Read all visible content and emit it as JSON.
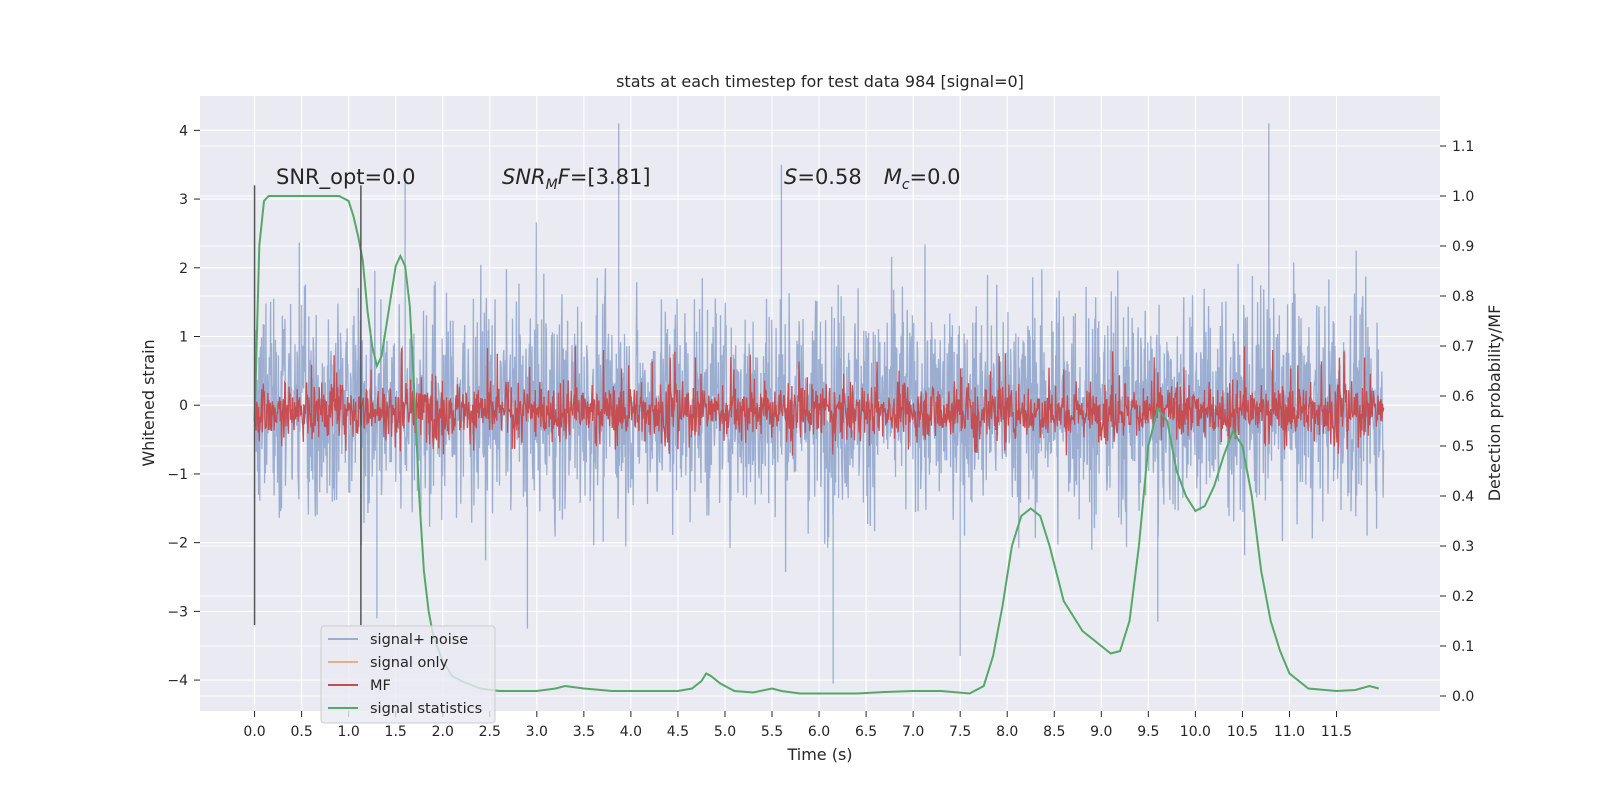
{
  "chart_data": {
    "type": "line",
    "title": "stats at each timestep for test data 984 [signal=0]",
    "xlabel": "Time (s)",
    "ylabel": "Whitened strain",
    "y2label": "Detection probability/MF",
    "xlim": [
      -0.58,
      12.6
    ],
    "ylim": [
      -4.45,
      4.5
    ],
    "y2lim": [
      -0.03,
      1.2
    ],
    "grid": true,
    "x_ticks": [
      0.0,
      0.5,
      1.0,
      1.5,
      2.0,
      2.5,
      3.0,
      3.5,
      4.0,
      4.5,
      5.0,
      5.5,
      6.0,
      6.5,
      7.0,
      7.5,
      8.0,
      8.5,
      9.0,
      9.5,
      10.0,
      10.5,
      11.0,
      11.5
    ],
    "x_tick_labels": [
      "0.0",
      "0.5",
      "1.0",
      "1.5",
      "2.0",
      "2.5",
      "3.0",
      "3.5",
      "4.0",
      "4.5",
      "5.0",
      "5.5",
      "6.0",
      "6.5",
      "7.0",
      "7.5",
      "8.0",
      "8.5",
      "9.0",
      "9.5",
      "10.0",
      "10.5",
      "11.0",
      "11.5"
    ],
    "y_ticks": [
      4,
      3,
      2,
      1,
      0,
      -1,
      -2,
      -3,
      -4
    ],
    "y_tick_labels": [
      "4",
      "3",
      "2",
      "1",
      "0",
      "−1",
      "−2",
      "−3",
      "−4"
    ],
    "y2_ticks": [
      1.1,
      1.0,
      0.9,
      0.8,
      0.7,
      0.6,
      0.5,
      0.4,
      0.3,
      0.2,
      0.1,
      0.0
    ],
    "y2_tick_labels": [
      "1.1",
      "1.0",
      "0.9",
      "0.8",
      "0.7",
      "0.6",
      "0.5",
      "0.4",
      "0.3",
      "0.2",
      "0.1",
      "0.0"
    ],
    "vlines": [
      0.0,
      1.13
    ],
    "vline_range": [
      -3.2,
      3.2
    ],
    "annotations": [
      {
        "text": "SNR_opt=0.0",
        "x": 0.2,
        "y": 3.3
      },
      {
        "prefix": "SNR",
        "sub": "M",
        "suffix": "F=[3.81]",
        "x": 2.6,
        "y": 3.3
      },
      {
        "s_part": "S",
        "s_value": "=0.58",
        "mc_part": "M",
        "mc_sub": "c",
        "mc_value": "=0.0",
        "x": 5.6,
        "y": 3.3
      }
    ],
    "legend": {
      "placement": "lower-left",
      "entries": [
        "signal+ noise",
        "signal only",
        "MF",
        "signal statistics"
      ]
    },
    "series": [
      {
        "name": "signal+ noise",
        "axis": "left",
        "kind": "noise",
        "color": "#4c72b0",
        "alpha": 0.5,
        "x_range": [
          0.0,
          12.0
        ],
        "sigma": 1.0,
        "peaks": [
          {
            "x": 3.87,
            "y": 4.1
          },
          {
            "x": 10.78,
            "y": 4.1
          },
          {
            "x": 5.6,
            "y": 3.5
          },
          {
            "x": 1.6,
            "y": 3.3
          },
          {
            "x": 6.15,
            "y": -4.05
          },
          {
            "x": 7.5,
            "y": -3.65
          },
          {
            "x": 1.3,
            "y": -3.1
          },
          {
            "x": 2.9,
            "y": -3.25
          },
          {
            "x": 9.6,
            "y": -3.15
          }
        ]
      },
      {
        "name": "signal only",
        "axis": "left",
        "kind": "line",
        "color": "#dd8452",
        "x": [
          0.0,
          12.0
        ],
        "y": [
          0.0,
          0.0
        ]
      },
      {
        "name": "MF",
        "axis": "right",
        "kind": "band",
        "color": "#c44e52",
        "x_range": [
          0.0,
          12.0
        ],
        "band_low": 0.5,
        "band_high": 0.64
      },
      {
        "name": "signal statistics",
        "axis": "right",
        "kind": "line",
        "color": "#55a868",
        "x": [
          0.0,
          0.05,
          0.1,
          0.15,
          0.2,
          0.3,
          0.5,
          0.7,
          0.9,
          1.0,
          1.05,
          1.1,
          1.15,
          1.2,
          1.25,
          1.3,
          1.35,
          1.4,
          1.45,
          1.5,
          1.55,
          1.6,
          1.65,
          1.7,
          1.75,
          1.8,
          1.85,
          1.9,
          2.0,
          2.1,
          2.2,
          2.4,
          2.6,
          2.8,
          3.0,
          3.2,
          3.3,
          3.5,
          3.8,
          4.2,
          4.5,
          4.65,
          4.75,
          4.8,
          4.85,
          4.95,
          5.1,
          5.3,
          5.5,
          5.6,
          5.8,
          6.0,
          6.4,
          6.7,
          7.0,
          7.3,
          7.6,
          7.75,
          7.85,
          7.95,
          8.05,
          8.15,
          8.25,
          8.35,
          8.45,
          8.6,
          8.8,
          9.0,
          9.1,
          9.2,
          9.3,
          9.4,
          9.5,
          9.6,
          9.7,
          9.8,
          9.9,
          10.0,
          10.1,
          10.2,
          10.3,
          10.4,
          10.5,
          10.6,
          10.7,
          10.8,
          10.9,
          11.0,
          11.2,
          11.5,
          11.7,
          11.85,
          11.95
        ],
        "y": [
          0.55,
          0.9,
          0.99,
          1.0,
          1.0,
          1.0,
          1.0,
          1.0,
          1.0,
          0.99,
          0.96,
          0.92,
          0.87,
          0.77,
          0.7,
          0.66,
          0.68,
          0.74,
          0.8,
          0.86,
          0.88,
          0.86,
          0.78,
          0.6,
          0.4,
          0.25,
          0.17,
          0.12,
          0.07,
          0.04,
          0.03,
          0.015,
          0.01,
          0.01,
          0.01,
          0.015,
          0.02,
          0.015,
          0.01,
          0.01,
          0.01,
          0.015,
          0.03,
          0.045,
          0.04,
          0.025,
          0.01,
          0.007,
          0.015,
          0.01,
          0.005,
          0.005,
          0.005,
          0.008,
          0.01,
          0.01,
          0.005,
          0.02,
          0.08,
          0.18,
          0.3,
          0.36,
          0.375,
          0.36,
          0.3,
          0.19,
          0.13,
          0.1,
          0.085,
          0.09,
          0.15,
          0.3,
          0.5,
          0.575,
          0.55,
          0.45,
          0.4,
          0.37,
          0.38,
          0.42,
          0.48,
          0.53,
          0.5,
          0.4,
          0.25,
          0.15,
          0.09,
          0.045,
          0.015,
          0.01,
          0.012,
          0.02,
          0.015
        ]
      }
    ]
  }
}
